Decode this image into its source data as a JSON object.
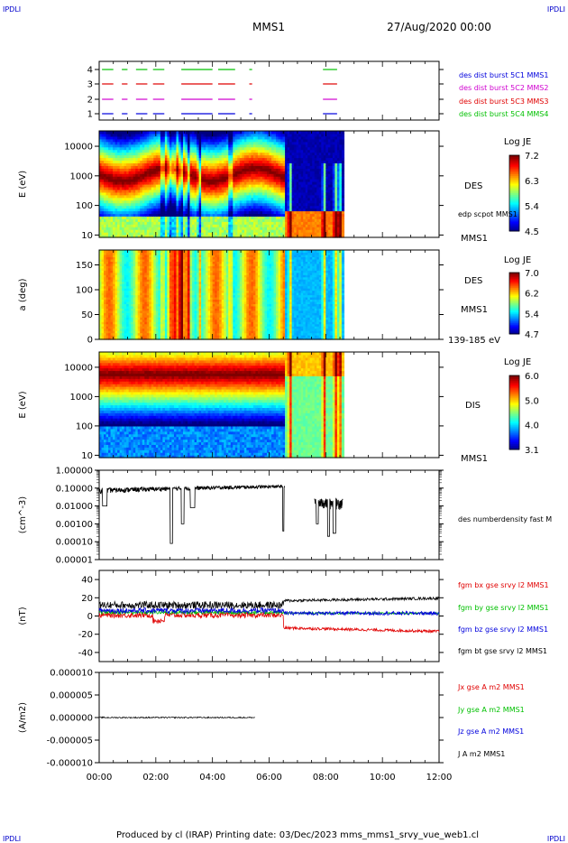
{
  "corner_labels": {
    "tl": "IPDLI",
    "tr": "IPDLI",
    "bl": "IPDLI",
    "br": "IPDLI"
  },
  "header": {
    "mission": "MMS1",
    "date": "27/Aug/2020 00:00"
  },
  "footer": "Produced by cl (IRAP)   Printing date: 03/Dec/2023   mms_mms1_srvy_vue_web1.cl",
  "colors": {
    "red": "#e00000",
    "green": "#00c000",
    "blue": "#0000dd",
    "magenta": "#d000d0"
  },
  "chart_data": [
    {
      "type": "timeline",
      "panel": "burst",
      "yticks": [
        "1",
        "2",
        "3",
        "4"
      ],
      "legend": [
        {
          "text": "des dist burst 5C1 MMS1",
          "color": "#0000dd"
        },
        {
          "text": "des dist burst 5C2 MMS2",
          "color": "#d000d0"
        },
        {
          "text": "des dist burst 5C3 MMS3",
          "color": "#e00000"
        },
        {
          "text": "des dist burst 5C4 MMS4",
          "color": "#00c000"
        }
      ],
      "intervals_hours": [
        [
          0.1,
          0.5
        ],
        [
          0.8,
          1.0
        ],
        [
          1.3,
          1.7
        ],
        [
          1.9,
          2.3
        ],
        [
          2.9,
          4.0
        ],
        [
          4.2,
          4.8
        ],
        [
          5.3,
          5.4
        ],
        [
          7.9,
          8.4
        ]
      ]
    },
    {
      "type": "heatmap",
      "panel": "des_energy",
      "ylabel": "E (eV)",
      "yscale": "log",
      "ytick_labels": [
        "10",
        "100",
        "1000",
        "10000"
      ],
      "right_labels": [
        "DES",
        "edp scpot MMS1",
        "MMS1"
      ],
      "colorbar": {
        "title": "Log JE",
        "ticks": [
          "7.2",
          "6.3",
          "5.4",
          "4.5"
        ]
      },
      "data_end_hour": 8.6
    },
    {
      "type": "heatmap",
      "panel": "des_pitch",
      "ylabel": "a (deg)",
      "ytick_labels": [
        "0",
        "50",
        "100",
        "150"
      ],
      "right_labels": [
        "DES",
        "MMS1",
        "139-185 eV"
      ],
      "colorbar": {
        "title": "Log JE",
        "ticks": [
          "7.0",
          "6.2",
          "5.4",
          "4.7"
        ]
      },
      "data_end_hour": 8.6
    },
    {
      "type": "heatmap",
      "panel": "dis_energy",
      "ylabel": "E (eV)",
      "yscale": "log",
      "ytick_labels": [
        "10",
        "100",
        "1000",
        "10000"
      ],
      "right_labels": [
        "DIS",
        "MMS1"
      ],
      "colorbar": {
        "title": "Log JE",
        "ticks": [
          "6.0",
          "5.0",
          "4.0",
          "3.1"
        ]
      },
      "data_end_hour": 8.6
    },
    {
      "type": "line",
      "panel": "density",
      "ylabel": "(cm^-3)",
      "yscale": "log",
      "ytick_labels": [
        "0.00001",
        "0.00010",
        "0.00100",
        "0.01000",
        "0.10000",
        "1.00000"
      ],
      "series": [
        {
          "name": "des numberdensity fast M",
          "color": "#000000"
        }
      ],
      "data_end_hour": 8.6
    },
    {
      "type": "line",
      "panel": "fgm",
      "ylabel": "(nT)",
      "ylim": [
        -50,
        50
      ],
      "ytick_labels": [
        "-40",
        "-20",
        "0",
        "20",
        "40"
      ],
      "series": [
        {
          "name": "fgm bx gse srvy l2 MMS1",
          "color": "#e00000"
        },
        {
          "name": "fgm by gse srvy l2 MMS1",
          "color": "#00c000"
        },
        {
          "name": "fgm bz gse srvy l2 MMS1",
          "color": "#0000dd"
        },
        {
          "name": "fgm bt gse srvy l2 MMS1",
          "color": "#000000"
        }
      ]
    },
    {
      "type": "line",
      "panel": "current",
      "ylabel": "(A/m2)",
      "ylim": [
        -1e-05,
        1e-05
      ],
      "ytick_labels": [
        "-0.000010",
        "-0.000005",
        "0.000000",
        "0.000005",
        "0.000010"
      ],
      "series": [
        {
          "name": "Jx gse A m2 MMS1",
          "color": "#e00000"
        },
        {
          "name": "Jy gse A m2 MMS1",
          "color": "#00c000"
        },
        {
          "name": "Jz gse A m2 MMS1",
          "color": "#0000dd"
        },
        {
          "name": "J A m2 MMS1",
          "color": "#000000"
        }
      ],
      "data_end_hour": 5.5
    }
  ],
  "x_axis": {
    "ticks": [
      "00:00",
      "02:00",
      "04:00",
      "06:00",
      "08:00",
      "10:00",
      "12:00"
    ],
    "range_hours": [
      0,
      12
    ]
  }
}
